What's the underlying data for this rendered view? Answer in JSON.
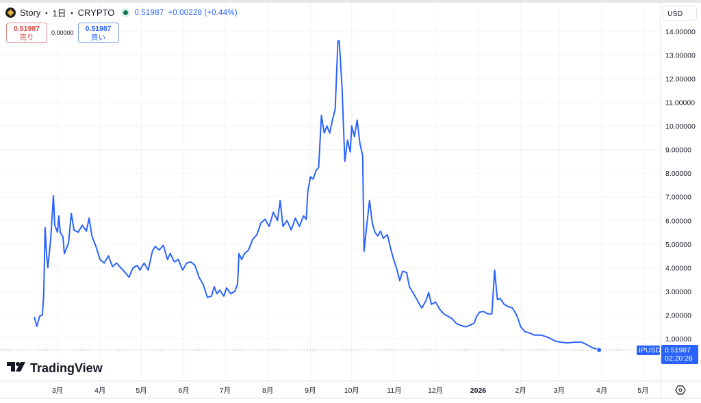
{
  "header": {
    "symbol": "Story",
    "sep1": "・",
    "interval": "1日",
    "sep2": "・",
    "exchange": "CRYPTO",
    "last": "0.51987",
    "change": "+0.00228",
    "change_pct": "(+0.44%)"
  },
  "trade": {
    "sell_price": "0.51987",
    "sell_label": "売り",
    "spread": "0.00000",
    "buy_price": "0.51987",
    "buy_label": "買い"
  },
  "currency": "USD",
  "brand": "TradingView",
  "price_tag": {
    "symbol": "IPUSD",
    "price": "0.51987",
    "countdown": "02:20:26"
  },
  "colors": {
    "line": "#2962ff",
    "sell": "#e04848",
    "buy": "#2962ff",
    "grid": "#f0f3fa"
  },
  "chart_data": {
    "type": "line",
    "ylim": [
      0,
      14.5
    ],
    "y_ticks": [
      "1.00000",
      "2.00000",
      "3.00000",
      "4.00000",
      "5.00000",
      "6.00000",
      "7.00000",
      "8.00000",
      "9.00000",
      "10.00000",
      "11.00000",
      "12.00000",
      "13.00000",
      "14.00000"
    ],
    "x_ticks": [
      {
        "date": "2025-03-01",
        "label": "3月"
      },
      {
        "date": "2025-04-01",
        "label": "4月"
      },
      {
        "date": "2025-05-01",
        "label": "5月"
      },
      {
        "date": "2025-06-01",
        "label": "6月"
      },
      {
        "date": "2025-07-01",
        "label": "7月"
      },
      {
        "date": "2025-08-01",
        "label": "8月"
      },
      {
        "date": "2025-09-01",
        "label": "9月"
      },
      {
        "date": "2025-10-01",
        "label": "10月"
      },
      {
        "date": "2025-11-01",
        "label": "11月"
      },
      {
        "date": "2025-12-01",
        "label": "12月"
      },
      {
        "date": "2026-01-01",
        "label": "2026"
      },
      {
        "date": "2026-02-01",
        "label": "2月"
      },
      {
        "date": "2026-03-01",
        "label": "3月"
      },
      {
        "date": "2026-04-01",
        "label": "4月"
      },
      {
        "date": "2026-05-01",
        "label": "5月"
      }
    ],
    "grid": true,
    "series": [
      {
        "points": [
          [
            "2025-02-12",
            1.92
          ],
          [
            "2025-02-14",
            1.52
          ],
          [
            "2025-02-16",
            1.95
          ],
          [
            "2025-02-18",
            2.0
          ],
          [
            "2025-02-19",
            2.9
          ],
          [
            "2025-02-20",
            5.7
          ],
          [
            "2025-02-21",
            4.6
          ],
          [
            "2025-02-22",
            4.0
          ],
          [
            "2025-02-24",
            5.2
          ],
          [
            "2025-02-25",
            6.1
          ],
          [
            "2025-02-26",
            7.05
          ],
          [
            "2025-02-27",
            5.8
          ],
          [
            "2025-03-01",
            5.5
          ],
          [
            "2025-03-02",
            6.2
          ],
          [
            "2025-03-03",
            5.5
          ],
          [
            "2025-03-05",
            5.3
          ],
          [
            "2025-03-06",
            4.6
          ],
          [
            "2025-03-09",
            5.05
          ],
          [
            "2025-03-11",
            6.3
          ],
          [
            "2025-03-13",
            5.6
          ],
          [
            "2025-03-16",
            5.5
          ],
          [
            "2025-03-19",
            5.8
          ],
          [
            "2025-03-22",
            5.55
          ],
          [
            "2025-03-24",
            6.1
          ],
          [
            "2025-03-26",
            5.35
          ],
          [
            "2025-03-29",
            4.9
          ],
          [
            "2025-04-01",
            4.35
          ],
          [
            "2025-04-04",
            4.2
          ],
          [
            "2025-04-07",
            4.5
          ],
          [
            "2025-04-10",
            4.05
          ],
          [
            "2025-04-13",
            4.2
          ],
          [
            "2025-04-16",
            4.0
          ],
          [
            "2025-04-20",
            3.75
          ],
          [
            "2025-04-22",
            3.6
          ],
          [
            "2025-04-25",
            4.0
          ],
          [
            "2025-04-28",
            4.1
          ],
          [
            "2025-04-30",
            3.9
          ],
          [
            "2025-05-03",
            4.2
          ],
          [
            "2025-05-06",
            3.9
          ],
          [
            "2025-05-09",
            4.7
          ],
          [
            "2025-05-11",
            4.9
          ],
          [
            "2025-05-14",
            4.75
          ],
          [
            "2025-05-17",
            4.95
          ],
          [
            "2025-05-20",
            4.35
          ],
          [
            "2025-05-22",
            4.6
          ],
          [
            "2025-05-25",
            4.25
          ],
          [
            "2025-05-28",
            4.35
          ],
          [
            "2025-05-31",
            3.9
          ],
          [
            "2025-06-03",
            4.2
          ],
          [
            "2025-06-06",
            4.25
          ],
          [
            "2025-06-09",
            4.1
          ],
          [
            "2025-06-12",
            3.6
          ],
          [
            "2025-06-15",
            3.3
          ],
          [
            "2025-06-18",
            2.75
          ],
          [
            "2025-06-21",
            2.8
          ],
          [
            "2025-06-23",
            3.2
          ],
          [
            "2025-06-25",
            2.9
          ],
          [
            "2025-06-27",
            3.05
          ],
          [
            "2025-06-30",
            2.8
          ],
          [
            "2025-07-02",
            3.15
          ],
          [
            "2025-07-05",
            2.9
          ],
          [
            "2025-07-08",
            3.0
          ],
          [
            "2025-07-10",
            3.3
          ],
          [
            "2025-07-11",
            4.6
          ],
          [
            "2025-07-13",
            4.35
          ],
          [
            "2025-07-15",
            4.6
          ],
          [
            "2025-07-18",
            4.75
          ],
          [
            "2025-07-21",
            5.2
          ],
          [
            "2025-07-24",
            5.4
          ],
          [
            "2025-07-27",
            5.9
          ],
          [
            "2025-07-30",
            6.05
          ],
          [
            "2025-08-02",
            5.75
          ],
          [
            "2025-08-05",
            6.35
          ],
          [
            "2025-08-08",
            6.0
          ],
          [
            "2025-08-10",
            6.85
          ],
          [
            "2025-08-12",
            5.75
          ],
          [
            "2025-08-15",
            6.0
          ],
          [
            "2025-08-18",
            5.6
          ],
          [
            "2025-08-21",
            6.1
          ],
          [
            "2025-08-24",
            5.75
          ],
          [
            "2025-08-27",
            6.2
          ],
          [
            "2025-08-29",
            6.05
          ],
          [
            "2025-08-30",
            7.2
          ],
          [
            "2025-09-01",
            7.85
          ],
          [
            "2025-09-03",
            7.75
          ],
          [
            "2025-09-05",
            8.1
          ],
          [
            "2025-09-07",
            8.25
          ],
          [
            "2025-09-09",
            10.45
          ],
          [
            "2025-09-11",
            9.7
          ],
          [
            "2025-09-13",
            10.0
          ],
          [
            "2025-09-15",
            9.7
          ],
          [
            "2025-09-17",
            10.25
          ],
          [
            "2025-09-19",
            10.7
          ],
          [
            "2025-09-21",
            13.6
          ],
          [
            "2025-09-22",
            13.6
          ],
          [
            "2025-09-24",
            11.6
          ],
          [
            "2025-09-26",
            8.5
          ],
          [
            "2025-09-28",
            9.4
          ],
          [
            "2025-09-30",
            8.9
          ],
          [
            "2025-10-01",
            10.0
          ],
          [
            "2025-10-03",
            9.55
          ],
          [
            "2025-10-05",
            10.25
          ],
          [
            "2025-10-07",
            9.25
          ],
          [
            "2025-10-09",
            8.75
          ],
          [
            "2025-10-10",
            4.7
          ],
          [
            "2025-10-12",
            5.8
          ],
          [
            "2025-10-14",
            6.85
          ],
          [
            "2025-10-16",
            5.9
          ],
          [
            "2025-10-18",
            5.5
          ],
          [
            "2025-10-20",
            5.35
          ],
          [
            "2025-10-22",
            5.55
          ],
          [
            "2025-10-24",
            5.25
          ],
          [
            "2025-10-27",
            5.4
          ],
          [
            "2025-10-29",
            4.9
          ],
          [
            "2025-10-31",
            4.45
          ],
          [
            "2025-11-03",
            3.9
          ],
          [
            "2025-11-05",
            3.45
          ],
          [
            "2025-11-07",
            3.85
          ],
          [
            "2025-11-10",
            3.8
          ],
          [
            "2025-11-12",
            3.2
          ],
          [
            "2025-11-15",
            2.9
          ],
          [
            "2025-11-18",
            2.6
          ],
          [
            "2025-11-21",
            2.3
          ],
          [
            "2025-11-24",
            2.6
          ],
          [
            "2025-11-26",
            2.95
          ],
          [
            "2025-11-28",
            2.45
          ],
          [
            "2025-12-01",
            2.55
          ],
          [
            "2025-12-04",
            2.25
          ],
          [
            "2025-12-07",
            2.05
          ],
          [
            "2025-12-10",
            1.95
          ],
          [
            "2025-12-13",
            1.85
          ],
          [
            "2025-12-16",
            1.65
          ],
          [
            "2025-12-19",
            1.57
          ],
          [
            "2025-12-23",
            1.5
          ],
          [
            "2025-12-26",
            1.57
          ],
          [
            "2025-12-29",
            1.65
          ],
          [
            "2025-12-31",
            1.95
          ],
          [
            "2026-01-02",
            2.12
          ],
          [
            "2026-01-05",
            2.15
          ],
          [
            "2026-01-08",
            2.05
          ],
          [
            "2026-01-11",
            2.05
          ],
          [
            "2026-01-13",
            3.9
          ],
          [
            "2026-01-15",
            2.65
          ],
          [
            "2026-01-17",
            2.7
          ],
          [
            "2026-01-20",
            2.45
          ],
          [
            "2026-01-23",
            2.35
          ],
          [
            "2026-01-26",
            2.3
          ],
          [
            "2026-01-29",
            2.0
          ],
          [
            "2026-02-01",
            1.5
          ],
          [
            "2026-02-04",
            1.3
          ],
          [
            "2026-02-07",
            1.25
          ],
          [
            "2026-02-11",
            1.15
          ],
          [
            "2026-02-16",
            1.15
          ],
          [
            "2026-02-21",
            1.05
          ],
          [
            "2026-02-26",
            0.9
          ],
          [
            "2026-03-02",
            0.85
          ],
          [
            "2026-03-07",
            0.82
          ],
          [
            "2026-03-12",
            0.85
          ],
          [
            "2026-03-17",
            0.85
          ],
          [
            "2026-03-20",
            0.78
          ],
          [
            "2026-03-25",
            0.62
          ],
          [
            "2026-03-30",
            0.51987
          ]
        ]
      }
    ]
  }
}
